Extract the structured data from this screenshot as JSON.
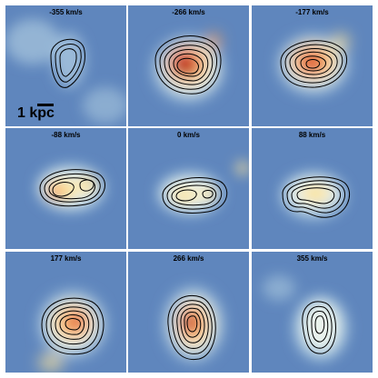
{
  "panels": [
    {
      "label": "-355 km/s"
    },
    {
      "label": "-266 km/s"
    },
    {
      "label": "-177 km/s"
    },
    {
      "label": "-88 km/s"
    },
    {
      "label": "0 km/s"
    },
    {
      "label": "88 km/s"
    },
    {
      "label": "177 km/s"
    },
    {
      "label": "266 km/s"
    },
    {
      "label": "355 km/s"
    }
  ],
  "scale_bar": {
    "label": "1 kpc"
  },
  "colors": {
    "background_blue": "#5f86bd",
    "light_blue": "#a9c7de",
    "pale": "#eaf3ec",
    "yellow": "#fce39a",
    "orange": "#f6a25f",
    "red": "#d7301f",
    "dark_red": "#9e0c14",
    "contour": "#000000",
    "divider": "#ffffff"
  }
}
